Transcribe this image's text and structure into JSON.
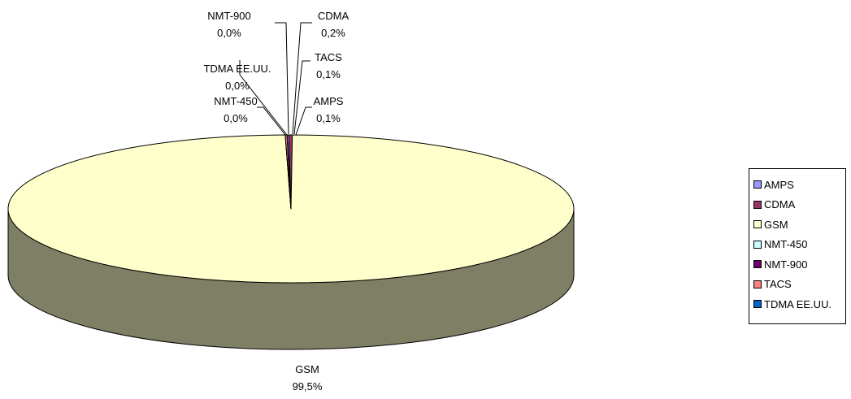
{
  "chart_data": {
    "type": "pie",
    "title": "",
    "categories": [
      "AMPS",
      "CDMA",
      "GSM",
      "NMT-450",
      "NMT-900",
      "TACS",
      "TDMA EE.UU."
    ],
    "values": [
      0.1,
      0.2,
      99.5,
      0.0,
      0.0,
      0.1,
      0.0
    ],
    "data_labels": [
      {
        "category": "GSM",
        "value": "99,5%"
      },
      {
        "category": "NMT-900",
        "value": "0,0%"
      },
      {
        "category": "CDMA",
        "value": "0,2%"
      },
      {
        "category": "TDMA EE.UU.",
        "value": "0,0%"
      },
      {
        "category": "TACS",
        "value": "0,1%"
      },
      {
        "category": "NMT-450",
        "value": "0,0%"
      },
      {
        "category": "AMPS",
        "value": "0,1%"
      }
    ],
    "legend_placement": "right",
    "three_d": true
  },
  "colors": {
    "AMPS": "#9999ff",
    "CDMA": "#993366",
    "GSM": "#ffffcc",
    "GSM_side": "#7f7f66",
    "NMT-450": "#ccffff",
    "NMT-900": "#660066",
    "TACS": "#ff8080",
    "TDMA EE.UU.": "#0066cc"
  }
}
